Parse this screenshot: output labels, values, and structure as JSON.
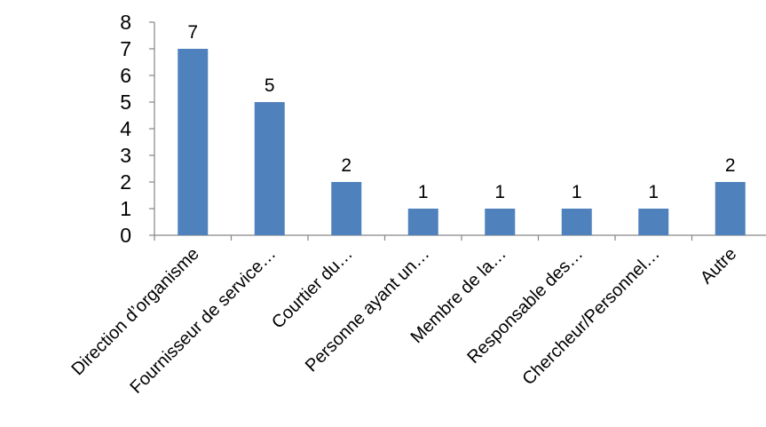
{
  "chart_data": {
    "type": "bar",
    "categories": [
      "Direction d’organisme",
      "Fournisseur de service…",
      "Courtier du…",
      "Personne ayant un…",
      "Membre de la…",
      "Responsable des…",
      "Chercheur/Personnel…",
      "Autre"
    ],
    "values": [
      7,
      5,
      2,
      1,
      1,
      1,
      1,
      2
    ],
    "data_labels": [
      "7",
      "5",
      "2",
      "1",
      "1",
      "1",
      "1",
      "2"
    ],
    "ylim": [
      0,
      8
    ],
    "yticks": [
      0,
      1,
      2,
      3,
      4,
      5,
      6,
      7,
      8
    ],
    "title": "",
    "xlabel": "",
    "ylabel": "",
    "grid": false,
    "legend": "none",
    "colors": {
      "bar": "#4F81BD",
      "axis": "#868686",
      "text": "#000000"
    }
  }
}
